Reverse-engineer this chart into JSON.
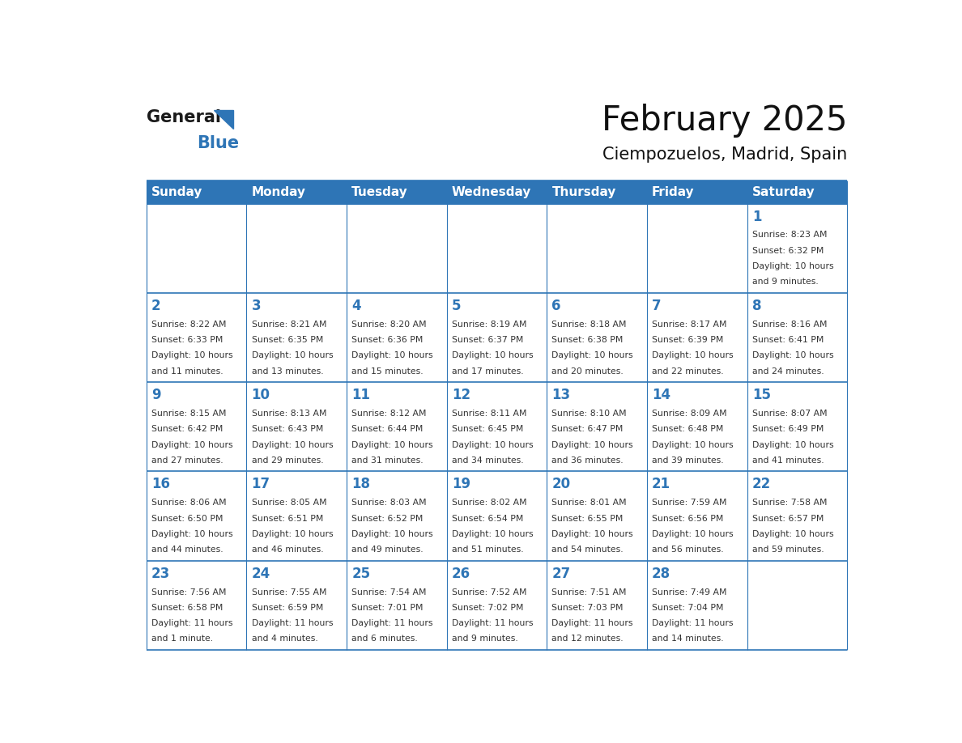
{
  "title": "February 2025",
  "subtitle": "Ciempozuelos, Madrid, Spain",
  "header_bg": "#2E75B6",
  "header_text_color": "#FFFFFF",
  "border_color": "#2E75B6",
  "text_color": "#333333",
  "day_number_color": "#2E75B6",
  "days_of_week": [
    "Sunday",
    "Monday",
    "Tuesday",
    "Wednesday",
    "Thursday",
    "Friday",
    "Saturday"
  ],
  "logo_general_color": "#1a1a1a",
  "logo_blue_color": "#2E75B6",
  "calendar": [
    [
      null,
      null,
      null,
      null,
      null,
      null,
      1
    ],
    [
      2,
      3,
      4,
      5,
      6,
      7,
      8
    ],
    [
      9,
      10,
      11,
      12,
      13,
      14,
      15
    ],
    [
      16,
      17,
      18,
      19,
      20,
      21,
      22
    ],
    [
      23,
      24,
      25,
      26,
      27,
      28,
      null
    ]
  ],
  "cell_data": {
    "1": {
      "sunrise": "8:23 AM",
      "sunset": "6:32 PM",
      "daylight_line1": "Daylight: 10 hours",
      "daylight_line2": "and 9 minutes."
    },
    "2": {
      "sunrise": "8:22 AM",
      "sunset": "6:33 PM",
      "daylight_line1": "Daylight: 10 hours",
      "daylight_line2": "and 11 minutes."
    },
    "3": {
      "sunrise": "8:21 AM",
      "sunset": "6:35 PM",
      "daylight_line1": "Daylight: 10 hours",
      "daylight_line2": "and 13 minutes."
    },
    "4": {
      "sunrise": "8:20 AM",
      "sunset": "6:36 PM",
      "daylight_line1": "Daylight: 10 hours",
      "daylight_line2": "and 15 minutes."
    },
    "5": {
      "sunrise": "8:19 AM",
      "sunset": "6:37 PM",
      "daylight_line1": "Daylight: 10 hours",
      "daylight_line2": "and 17 minutes."
    },
    "6": {
      "sunrise": "8:18 AM",
      "sunset": "6:38 PM",
      "daylight_line1": "Daylight: 10 hours",
      "daylight_line2": "and 20 minutes."
    },
    "7": {
      "sunrise": "8:17 AM",
      "sunset": "6:39 PM",
      "daylight_line1": "Daylight: 10 hours",
      "daylight_line2": "and 22 minutes."
    },
    "8": {
      "sunrise": "8:16 AM",
      "sunset": "6:41 PM",
      "daylight_line1": "Daylight: 10 hours",
      "daylight_line2": "and 24 minutes."
    },
    "9": {
      "sunrise": "8:15 AM",
      "sunset": "6:42 PM",
      "daylight_line1": "Daylight: 10 hours",
      "daylight_line2": "and 27 minutes."
    },
    "10": {
      "sunrise": "8:13 AM",
      "sunset": "6:43 PM",
      "daylight_line1": "Daylight: 10 hours",
      "daylight_line2": "and 29 minutes."
    },
    "11": {
      "sunrise": "8:12 AM",
      "sunset": "6:44 PM",
      "daylight_line1": "Daylight: 10 hours",
      "daylight_line2": "and 31 minutes."
    },
    "12": {
      "sunrise": "8:11 AM",
      "sunset": "6:45 PM",
      "daylight_line1": "Daylight: 10 hours",
      "daylight_line2": "and 34 minutes."
    },
    "13": {
      "sunrise": "8:10 AM",
      "sunset": "6:47 PM",
      "daylight_line1": "Daylight: 10 hours",
      "daylight_line2": "and 36 minutes."
    },
    "14": {
      "sunrise": "8:09 AM",
      "sunset": "6:48 PM",
      "daylight_line1": "Daylight: 10 hours",
      "daylight_line2": "and 39 minutes."
    },
    "15": {
      "sunrise": "8:07 AM",
      "sunset": "6:49 PM",
      "daylight_line1": "Daylight: 10 hours",
      "daylight_line2": "and 41 minutes."
    },
    "16": {
      "sunrise": "8:06 AM",
      "sunset": "6:50 PM",
      "daylight_line1": "Daylight: 10 hours",
      "daylight_line2": "and 44 minutes."
    },
    "17": {
      "sunrise": "8:05 AM",
      "sunset": "6:51 PM",
      "daylight_line1": "Daylight: 10 hours",
      "daylight_line2": "and 46 minutes."
    },
    "18": {
      "sunrise": "8:03 AM",
      "sunset": "6:52 PM",
      "daylight_line1": "Daylight: 10 hours",
      "daylight_line2": "and 49 minutes."
    },
    "19": {
      "sunrise": "8:02 AM",
      "sunset": "6:54 PM",
      "daylight_line1": "Daylight: 10 hours",
      "daylight_line2": "and 51 minutes."
    },
    "20": {
      "sunrise": "8:01 AM",
      "sunset": "6:55 PM",
      "daylight_line1": "Daylight: 10 hours",
      "daylight_line2": "and 54 minutes."
    },
    "21": {
      "sunrise": "7:59 AM",
      "sunset": "6:56 PM",
      "daylight_line1": "Daylight: 10 hours",
      "daylight_line2": "and 56 minutes."
    },
    "22": {
      "sunrise": "7:58 AM",
      "sunset": "6:57 PM",
      "daylight_line1": "Daylight: 10 hours",
      "daylight_line2": "and 59 minutes."
    },
    "23": {
      "sunrise": "7:56 AM",
      "sunset": "6:58 PM",
      "daylight_line1": "Daylight: 11 hours",
      "daylight_line2": "and 1 minute."
    },
    "24": {
      "sunrise": "7:55 AM",
      "sunset": "6:59 PM",
      "daylight_line1": "Daylight: 11 hours",
      "daylight_line2": "and 4 minutes."
    },
    "25": {
      "sunrise": "7:54 AM",
      "sunset": "7:01 PM",
      "daylight_line1": "Daylight: 11 hours",
      "daylight_line2": "and 6 minutes."
    },
    "26": {
      "sunrise": "7:52 AM",
      "sunset": "7:02 PM",
      "daylight_line1": "Daylight: 11 hours",
      "daylight_line2": "and 9 minutes."
    },
    "27": {
      "sunrise": "7:51 AM",
      "sunset": "7:03 PM",
      "daylight_line1": "Daylight: 11 hours",
      "daylight_line2": "and 12 minutes."
    },
    "28": {
      "sunrise": "7:49 AM",
      "sunset": "7:04 PM",
      "daylight_line1": "Daylight: 11 hours",
      "daylight_line2": "and 14 minutes."
    }
  }
}
